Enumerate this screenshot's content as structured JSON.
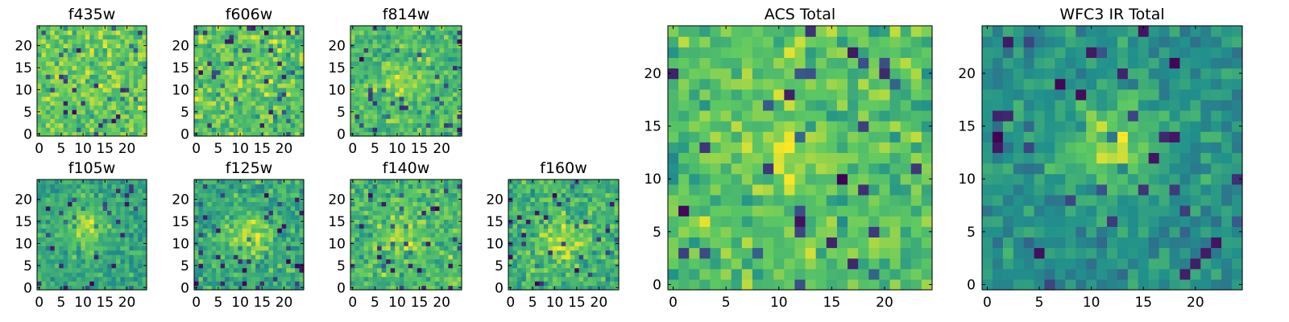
{
  "figure": {
    "background": "#ffffff",
    "colormap": "viridis",
    "colormap_stops": [
      "#440154",
      "#3b528b",
      "#21918c",
      "#5ec962",
      "#fde725"
    ]
  },
  "chart_data": [
    {
      "type": "heatmap",
      "title": "f435w",
      "grid_size": 25,
      "xticks": [
        0,
        5,
        10,
        15,
        20
      ],
      "yticks": [
        0,
        5,
        10,
        15,
        20
      ],
      "xlim": [
        -0.5,
        24.5
      ],
      "ylim": [
        -0.5,
        24.5
      ],
      "peak": [
        12,
        12
      ],
      "source_strength": 0.0,
      "noise": 0.7,
      "seed": 11,
      "values": []
    },
    {
      "type": "heatmap",
      "title": "f606w",
      "grid_size": 25,
      "xticks": [
        0,
        5,
        10,
        15,
        20
      ],
      "yticks": [
        0,
        5,
        10,
        15,
        20
      ],
      "xlim": [
        -0.5,
        24.5
      ],
      "ylim": [
        -0.5,
        24.5
      ],
      "peak": [
        12,
        13
      ],
      "source_strength": 0.35,
      "noise": 0.65,
      "seed": 23,
      "values": []
    },
    {
      "type": "heatmap",
      "title": "f814w",
      "grid_size": 25,
      "xticks": [
        0,
        5,
        10,
        15,
        20
      ],
      "yticks": [
        0,
        5,
        10,
        15,
        20
      ],
      "xlim": [
        -0.5,
        24.5
      ],
      "ylim": [
        -0.5,
        24.5
      ],
      "peak": [
        11,
        12
      ],
      "source_strength": 0.5,
      "noise": 0.6,
      "seed": 37,
      "values": []
    },
    {
      "type": "heatmap",
      "title": "f105w",
      "grid_size": 25,
      "xticks": [
        0,
        5,
        10,
        15,
        20
      ],
      "yticks": [
        0,
        5,
        10,
        15,
        20
      ],
      "xlim": [
        -0.5,
        24.5
      ],
      "ylim": [
        -0.5,
        24.5
      ],
      "peak": [
        11,
        14
      ],
      "source_strength": 0.9,
      "noise": 0.4,
      "seed": 41,
      "values": []
    },
    {
      "type": "heatmap",
      "title": "f125w",
      "grid_size": 25,
      "xticks": [
        0,
        5,
        10,
        15,
        20
      ],
      "yticks": [
        0,
        5,
        10,
        15,
        20
      ],
      "xlim": [
        -0.5,
        24.5
      ],
      "ylim": [
        -0.5,
        24.5
      ],
      "peak": [
        12,
        12
      ],
      "source_strength": 0.85,
      "noise": 0.45,
      "seed": 53,
      "values": []
    },
    {
      "type": "heatmap",
      "title": "f140w",
      "grid_size": 25,
      "xticks": [
        0,
        5,
        10,
        15,
        20
      ],
      "yticks": [
        0,
        5,
        10,
        15,
        20
      ],
      "xlim": [
        -0.5,
        24.5
      ],
      "ylim": [
        -0.5,
        24.5
      ],
      "peak": [
        12,
        12
      ],
      "source_strength": 0.6,
      "noise": 0.55,
      "seed": 67,
      "values": []
    },
    {
      "type": "heatmap",
      "title": "f160w",
      "grid_size": 25,
      "xticks": [
        0,
        5,
        10,
        15,
        20
      ],
      "yticks": [
        0,
        5,
        10,
        15,
        20
      ],
      "xlim": [
        -0.5,
        24.5
      ],
      "ylim": [
        -0.5,
        24.5
      ],
      "peak": [
        12,
        11
      ],
      "source_strength": 0.75,
      "noise": 0.5,
      "seed": 79,
      "values": []
    },
    {
      "type": "heatmap",
      "title": "ACS Total",
      "grid_size": 25,
      "xticks": [
        0,
        5,
        10,
        15,
        20
      ],
      "yticks": [
        0,
        5,
        10,
        15,
        20
      ],
      "xlim": [
        -0.5,
        24.5
      ],
      "ylim": [
        -0.5,
        24.5
      ],
      "peak": [
        11,
        12
      ],
      "source_strength": 0.45,
      "noise": 0.6,
      "seed": 83,
      "values": []
    },
    {
      "type": "heatmap",
      "title": "WFC3 IR Total",
      "grid_size": 25,
      "xticks": [
        0,
        5,
        10,
        15,
        20
      ],
      "yticks": [
        0,
        5,
        10,
        15,
        20
      ],
      "xlim": [
        -0.5,
        24.5
      ],
      "ylim": [
        -0.5,
        24.5
      ],
      "peak": [
        12,
        13
      ],
      "source_strength": 1.0,
      "noise": 0.35,
      "seed": 97,
      "values": []
    }
  ]
}
